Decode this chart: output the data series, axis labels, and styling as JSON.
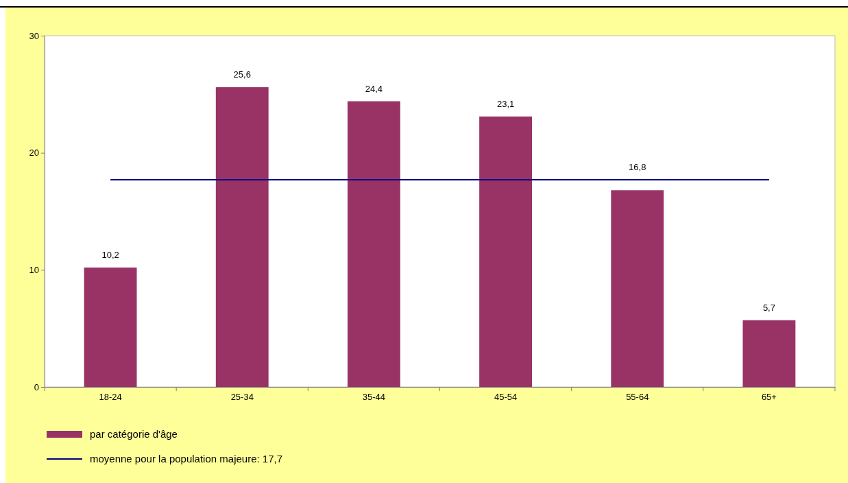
{
  "chart_data": {
    "type": "bar",
    "categories": [
      "18-24",
      "25-34",
      "35-44",
      "45-54",
      "55-64",
      "65+"
    ],
    "series": [
      {
        "name": "par catégorie d'âge",
        "color": "#993366",
        "values": [
          10.2,
          25.6,
          24.4,
          23.1,
          16.8,
          5.7
        ],
        "value_labels": [
          "10,2",
          "25,6",
          "24,4",
          "23,1",
          "16,8",
          "5,7"
        ]
      }
    ],
    "ylim": [
      0,
      30
    ],
    "yticks": [
      0,
      10,
      20,
      30
    ],
    "ref_lines": [
      {
        "axis": "y",
        "value": 17.7,
        "label": "moyenne pour la population majeure: 17,7",
        "color": "#000080",
        "line_style": "solid"
      }
    ],
    "grid": false,
    "legend": "bottom"
  }
}
